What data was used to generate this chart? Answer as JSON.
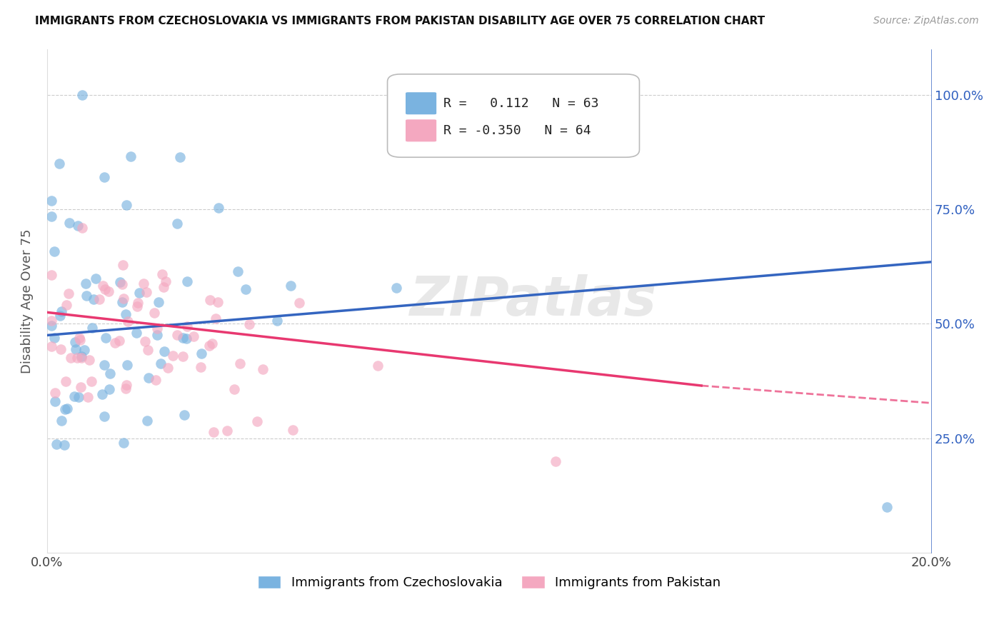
{
  "title": "IMMIGRANTS FROM CZECHOSLOVAKIA VS IMMIGRANTS FROM PAKISTAN DISABILITY AGE OVER 75 CORRELATION CHART",
  "source": "Source: ZipAtlas.com",
  "ylabel": "Disability Age Over 75",
  "legend_blue_r": "0.112",
  "legend_blue_n": "63",
  "legend_pink_r": "-0.350",
  "legend_pink_n": "64",
  "legend_blue_label": "Immigrants from Czechoslovakia",
  "legend_pink_label": "Immigrants from Pakistan",
  "blue_color": "#7ab3e0",
  "pink_color": "#f4a8c0",
  "blue_line_color": "#3465c0",
  "pink_line_color": "#e83870",
  "xlim": [
    0.0,
    0.2
  ],
  "ylim": [
    0.0,
    1.1
  ],
  "blue_line_x0": 0.0,
  "blue_line_y0": 0.475,
  "blue_line_x1": 0.2,
  "blue_line_y1": 0.635,
  "pink_line_solid_x0": 0.0,
  "pink_line_solid_y0": 0.525,
  "pink_line_solid_x1": 0.148,
  "pink_line_solid_y1": 0.365,
  "pink_line_dash_x0": 0.148,
  "pink_line_dash_y0": 0.365,
  "pink_line_dash_x1": 0.2,
  "pink_line_dash_y1": 0.327
}
